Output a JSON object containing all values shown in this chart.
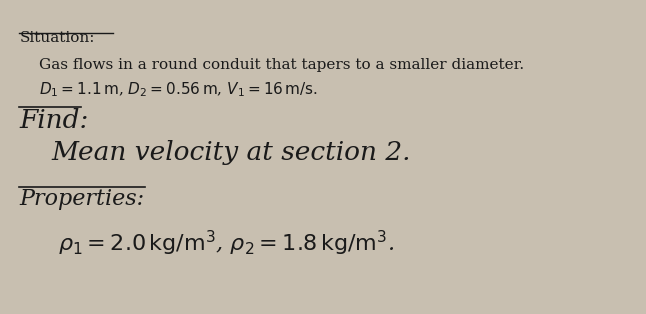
{
  "bg_color": "#c8bfb0",
  "fig_width": 6.46,
  "fig_height": 3.14,
  "situation_label": "Situation:",
  "situation_line1": "Gas flows in a round conduit that tapers to a smaller diameter.",
  "situation_line2": "$D_1 = 1.1\\,\\mathrm{m}$, $D_2 = 0.56\\,\\mathrm{m}$, $V_1 = 16\\,\\mathrm{m/s}$.",
  "find_label": "Find:",
  "find_line1": "Mean velocity at section 2.",
  "properties_label": "Properties:",
  "properties_line1": "$\\rho_1 = 2.0\\,\\mathrm{kg/m^3}$, $\\rho_2 = 1.8\\,\\mathrm{kg/m^3}$.",
  "text_color": "#1a1a1a",
  "font_family": "serif",
  "situation_fontsize": 11,
  "find_fontsize": 19,
  "find_body_fontsize": 19,
  "properties_fontsize": 16,
  "properties_body_fontsize": 16
}
